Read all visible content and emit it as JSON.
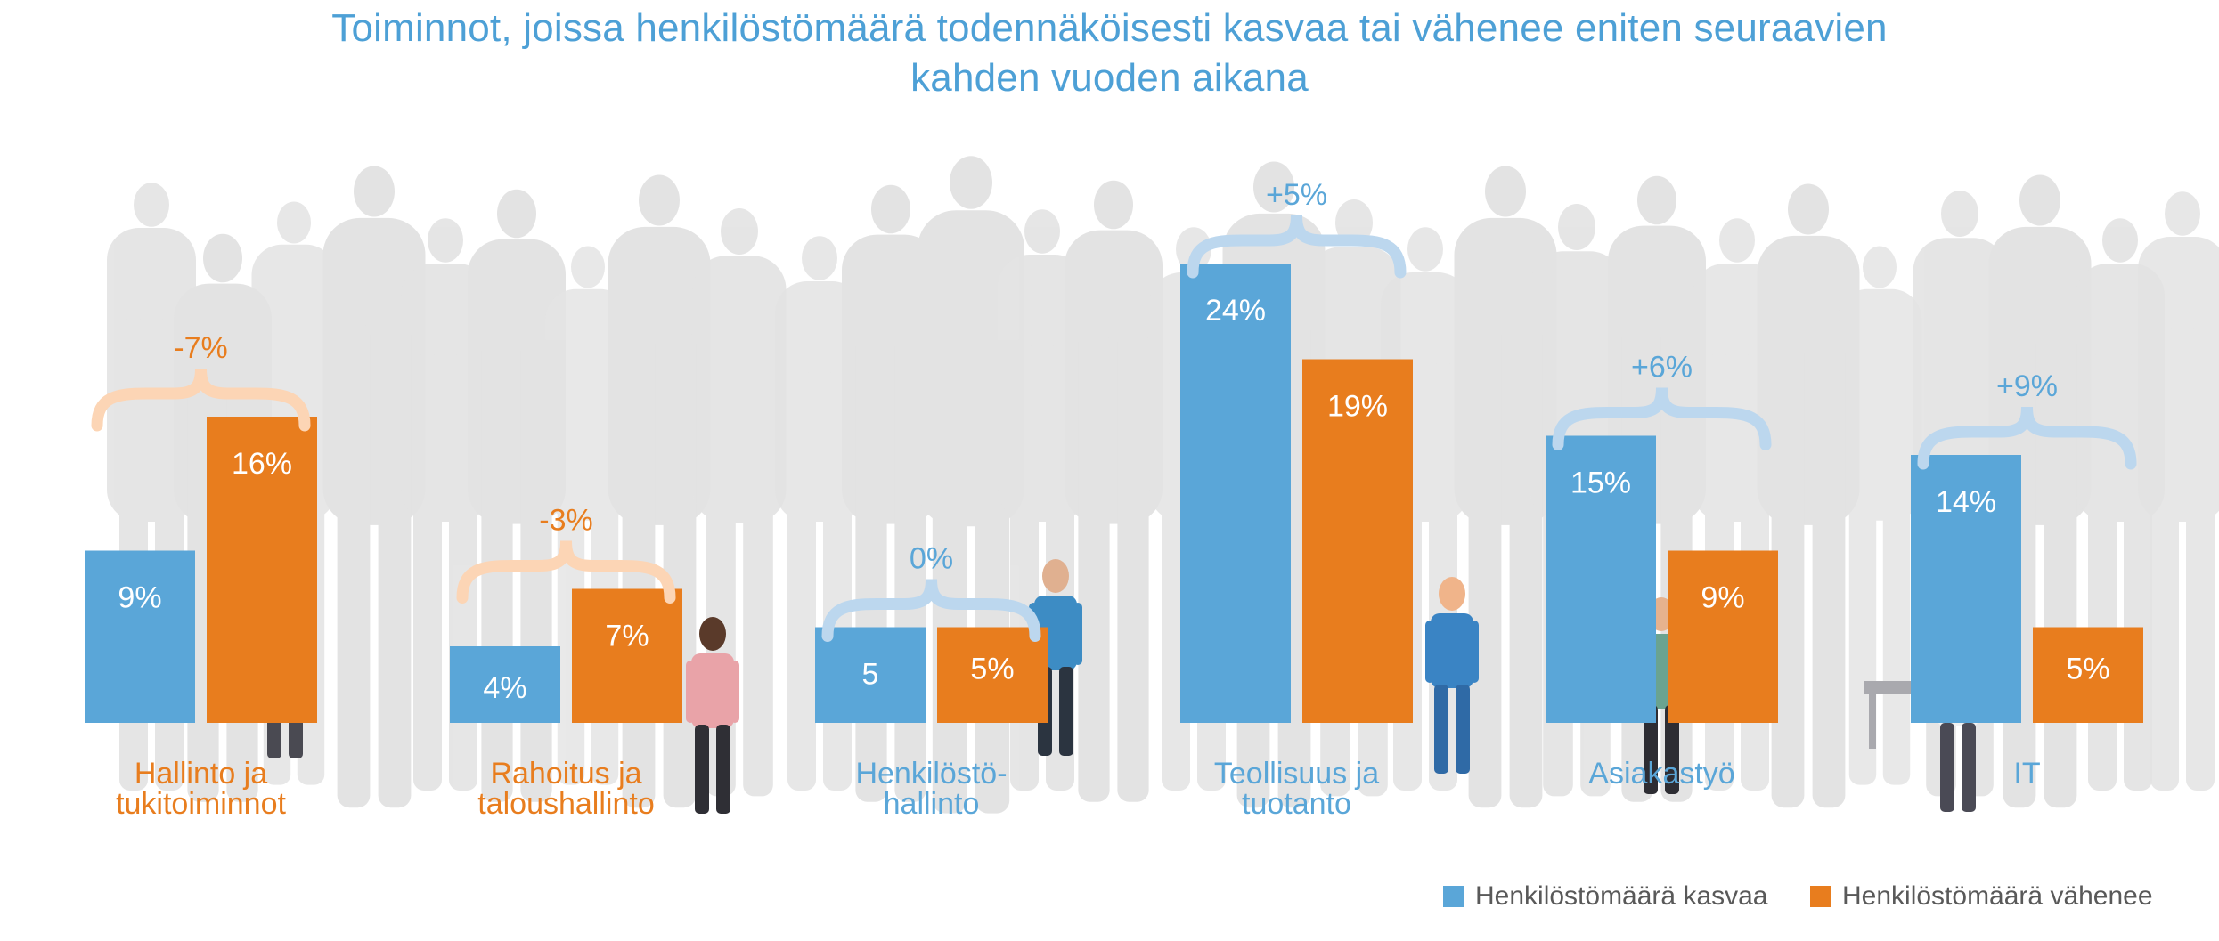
{
  "chart_data": {
    "type": "bar",
    "title_line1": "Toiminnot, joissa henkilöstömäärä todennäköisesti kasvaa tai vähenee eniten seuraavien",
    "title_line2": "kahden vuoden aikana",
    "categories": [
      {
        "line1": "Hallinto ja",
        "line2": "tukitoiminnot",
        "color": "#e87d1e"
      },
      {
        "line1": "Rahoitus ja",
        "line2": "taloushallinto",
        "color": "#e87d1e"
      },
      {
        "line1": "Henkilöstö-",
        "line2": "hallinto",
        "color": "#5aa6d8"
      },
      {
        "line1": "Teollisuus ja",
        "line2": "tuotanto",
        "color": "#5aa6d8"
      },
      {
        "line1": "Asiakastyö",
        "line2": "",
        "color": "#5aa6d8"
      },
      {
        "line1": "IT",
        "line2": "",
        "color": "#5aa6d8"
      }
    ],
    "series": [
      {
        "name": "Henkilöstömäärä kasvaa",
        "color": "#5aa6d8",
        "values": [
          9,
          4,
          5,
          24,
          15,
          14
        ],
        "labels": [
          "9%",
          "4%",
          "5",
          "24%",
          "15%",
          "14%"
        ]
      },
      {
        "name": "Henkilöstömäärä vähenee",
        "color": "#e87d1e",
        "values": [
          16,
          7,
          5,
          19,
          9,
          5
        ],
        "labels": [
          "16%",
          "7%",
          "5%",
          "19%",
          "9%",
          "5%"
        ]
      }
    ],
    "net_changes": [
      {
        "label": "-7%",
        "color": "#e87d1e",
        "brace_color": "#fcd5b5"
      },
      {
        "label": "-3%",
        "color": "#e87d1e",
        "brace_color": "#fcd5b5"
      },
      {
        "label": "0%",
        "color": "#5aa6d8",
        "brace_color": "#bcd7ee"
      },
      {
        "label": "+5%",
        "color": "#5aa6d8",
        "brace_color": "#bcd7ee"
      },
      {
        "label": "+6%",
        "color": "#5aa6d8",
        "brace_color": "#bcd7ee"
      },
      {
        "label": "+9%",
        "color": "#5aa6d8",
        "brace_color": "#bcd7ee"
      }
    ],
    "ylim": [
      0,
      30
    ],
    "grid": false,
    "legend_position": "bottom-right",
    "background": "crowd-silhouettes"
  }
}
